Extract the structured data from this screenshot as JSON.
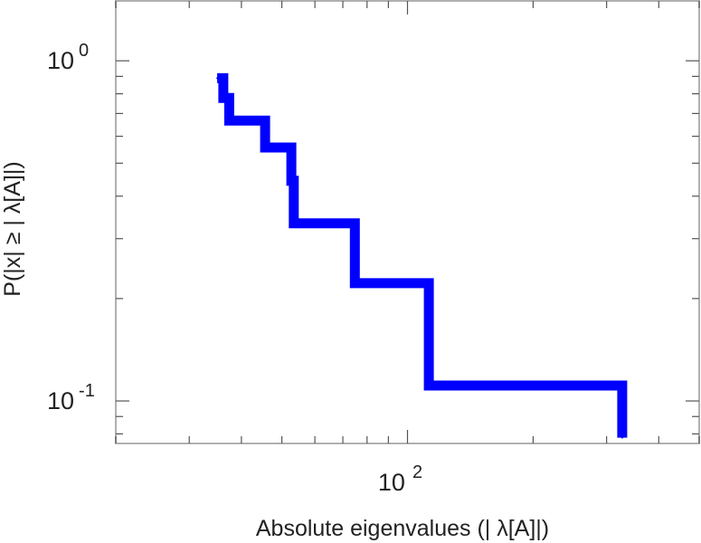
{
  "chart_data": {
    "type": "line",
    "step": true,
    "title": "",
    "xlabel": "Absolute eigenvalues (|     λ[A]|)",
    "ylabel": "P(|x|  ≥ | λ[A]|)",
    "xscale": "log",
    "yscale": "log",
    "xlim": [
      20,
      500
    ],
    "ylim": [
      0.075,
      1.5
    ],
    "grid": false,
    "x_tick_labels": [
      {
        "value": 100,
        "base": "10",
        "exp": "2"
      }
    ],
    "y_tick_labels": [
      {
        "value": 1,
        "base": "10",
        "exp": "0"
      },
      {
        "value": 0.1,
        "base": "10",
        "exp": "-1"
      }
    ],
    "series": [
      {
        "color": "#0000ff",
        "x": [
          35.0,
          36.2,
          37.4,
          45.6,
          52.7,
          53.4,
          74.8,
          112.5,
          327
        ],
        "y": [
          0.889,
          0.778,
          0.667,
          0.556,
          0.444,
          0.333,
          0.222,
          0.111,
          0.078
        ]
      }
    ]
  }
}
